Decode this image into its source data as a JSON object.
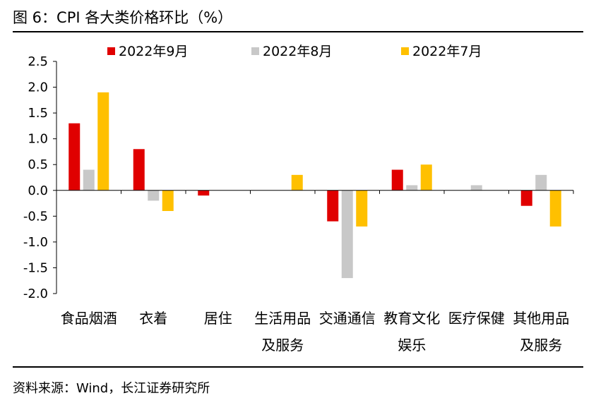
{
  "figure": {
    "title": "图 6：CPI 各大类价格环比（%）",
    "source": "资料来源：Wind，长江证券研究所"
  },
  "chart_data": {
    "type": "bar",
    "categories": [
      [
        "食品烟酒"
      ],
      [
        "衣着"
      ],
      [
        "居住"
      ],
      [
        "生活用品",
        "及服务"
      ],
      [
        "交通通信"
      ],
      [
        "教育文化",
        "娱乐"
      ],
      [
        "医疗保健"
      ],
      [
        "其他用品",
        "及服务"
      ]
    ],
    "series": [
      {
        "name": "2022年9月",
        "color": "#e00000",
        "values": [
          1.3,
          0.8,
          -0.1,
          0.0,
          -0.6,
          0.4,
          0.0,
          -0.3
        ]
      },
      {
        "name": "2022年8月",
        "color": "#c8c8c8",
        "values": [
          0.4,
          -0.2,
          0.0,
          0.0,
          -1.7,
          0.1,
          0.1,
          0.3
        ]
      },
      {
        "name": "2022年7月",
        "color": "#ffc000",
        "values": [
          1.9,
          -0.4,
          0.0,
          0.3,
          -0.7,
          0.5,
          0.0,
          -0.7
        ]
      }
    ],
    "yticks": [
      "2.5",
      "2.0",
      "1.5",
      "1.0",
      "0.5",
      "0.0",
      "-0.5",
      "-1.0",
      "-1.5",
      "-2.0"
    ],
    "ylim": [
      -2.0,
      2.5
    ],
    "legend_position": "top",
    "grid": false
  }
}
